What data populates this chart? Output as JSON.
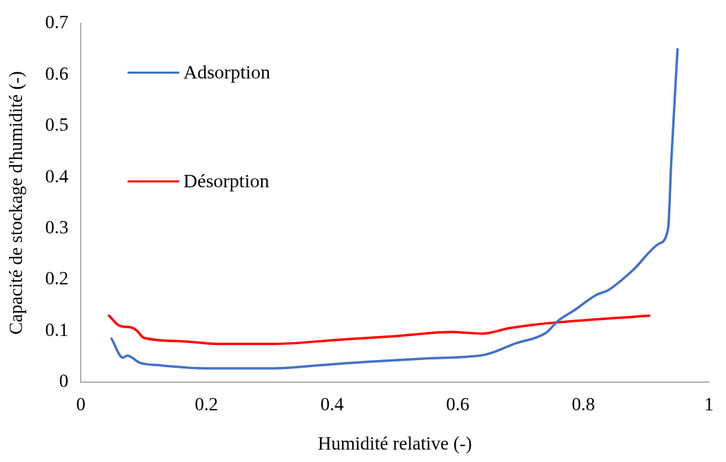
{
  "chart_data": {
    "type": "line",
    "xlabel": "Humidité relative (-)",
    "ylabel": "Capacité de stockage d'humidité (-)",
    "xlim": [
      0,
      1
    ],
    "xticks": [
      0,
      0.2,
      0.4,
      0.6,
      0.8,
      1
    ],
    "ylim": [
      0,
      0.7
    ],
    "yticks": [
      0,
      0.1,
      0.2,
      0.3,
      0.4,
      0.5,
      0.6,
      0.7
    ],
    "grid": false,
    "legend": "top left",
    "marker": "none",
    "line_style": "solid",
    "series": [
      {
        "name": "Adsorption",
        "color": "#4472c4",
        "x": [
          0.049,
          0.067,
          0.074,
          0.094,
          0.128,
          0.196,
          0.298,
          0.388,
          0.456,
          0.558,
          0.64,
          0.66,
          0.69,
          0.74,
          0.76,
          0.785,
          0.82,
          0.84,
          0.88,
          0.92,
          0.935,
          0.94,
          0.95
        ],
        "values": [
          0.085,
          0.048,
          0.052,
          0.038,
          0.033,
          0.027,
          0.027,
          0.034,
          0.04,
          0.047,
          0.053,
          0.06,
          0.075,
          0.096,
          0.12,
          0.14,
          0.17,
          0.18,
          0.22,
          0.27,
          0.3,
          0.43,
          0.65
        ]
      },
      {
        "name": "Désorption",
        "color": "#ff0000",
        "x": [
          0.045,
          0.062,
          0.08,
          0.09,
          0.1,
          0.162,
          0.218,
          0.31,
          0.41,
          0.5,
          0.59,
          0.64,
          0.68,
          0.72,
          0.76,
          0.905
        ],
        "values": [
          0.13,
          0.11,
          0.107,
          0.1,
          0.087,
          0.08,
          0.075,
          0.075,
          0.083,
          0.09,
          0.098,
          0.095,
          0.105,
          0.112,
          0.117,
          0.13
        ]
      }
    ]
  }
}
